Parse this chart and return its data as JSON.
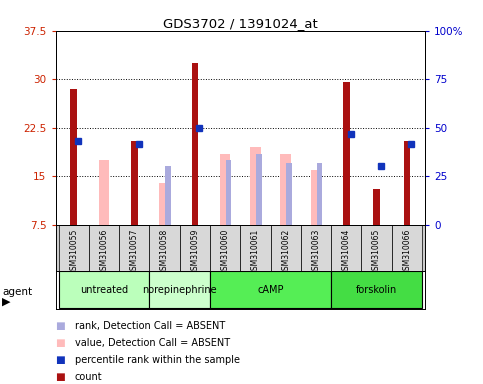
{
  "title": "GDS3702 / 1391024_at",
  "samples": [
    "GSM310055",
    "GSM310056",
    "GSM310057",
    "GSM310058",
    "GSM310059",
    "GSM310060",
    "GSM310061",
    "GSM310062",
    "GSM310063",
    "GSM310064",
    "GSM310065",
    "GSM310066"
  ],
  "agents": [
    {
      "label": "untreated",
      "start": 0,
      "end": 3,
      "color": "#bbffbb"
    },
    {
      "label": "norepinephrine",
      "start": 3,
      "end": 5,
      "color": "#ccffcc"
    },
    {
      "label": "cAMP",
      "start": 5,
      "end": 9,
      "color": "#55ee55"
    },
    {
      "label": "forskolin",
      "start": 9,
      "end": 12,
      "color": "#44dd44"
    }
  ],
  "count_red": [
    28.5,
    0,
    20.5,
    0,
    32.5,
    0,
    0,
    0,
    0,
    29.5,
    13.0,
    20.5
  ],
  "value_absent_pink": [
    0,
    17.5,
    0,
    14.0,
    0,
    18.5,
    19.5,
    18.5,
    16.0,
    0,
    0,
    0
  ],
  "rank_absent_lightblue": [
    0,
    0,
    0,
    16.5,
    0,
    17.5,
    18.5,
    17.0,
    17.0,
    0,
    0,
    0
  ],
  "pct_rank_blue": [
    20.5,
    0,
    20.0,
    0,
    22.5,
    0,
    0,
    0,
    0,
    21.5,
    16.5,
    20.0
  ],
  "ylim": [
    7.5,
    37.5
  ],
  "yticks": [
    7.5,
    15.0,
    22.5,
    30.0,
    37.5
  ],
  "ytick_labels": [
    "7.5",
    "15",
    "22.5",
    "30",
    "37.5"
  ],
  "y2lim": [
    0,
    100
  ],
  "y2ticks": [
    0,
    25,
    50,
    75,
    100
  ],
  "y2tick_labels": [
    "0",
    "25",
    "50",
    "75",
    "100%"
  ],
  "red_color": "#aa1111",
  "pink_color": "#ffbbbb",
  "blue_color": "#1133bb",
  "lightblue_color": "#aaaadd",
  "legend_items": [
    "count",
    "percentile rank within the sample",
    "value, Detection Call = ABSENT",
    "rank, Detection Call = ABSENT"
  ]
}
